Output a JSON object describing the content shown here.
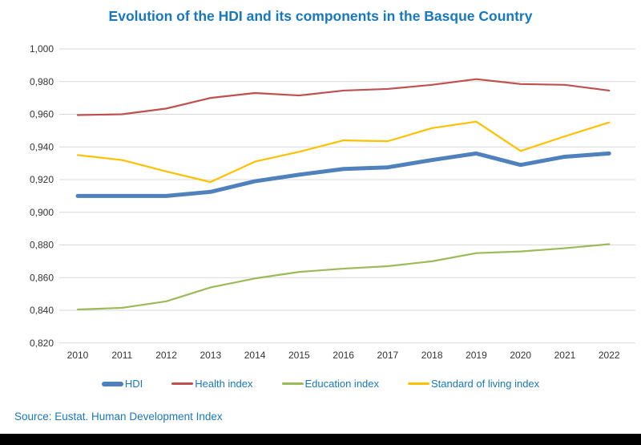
{
  "title": "Evolution of the HDI and its components in the Basque Country",
  "source": "Source: Eustat. Human Development Index",
  "colors": {
    "title_text": "#1878BE",
    "legend_text": "#1878BE",
    "source_text": "#1878BE",
    "gridline": "#D9D9D9",
    "tick_text": "#333333",
    "footer_bar": "#000000",
    "hdi_line": "#4F81BD",
    "health_line": "#C0504D",
    "education_line": "#9BBB59",
    "standard_of_living_line": "#FFC000"
  },
  "chart_data": {
    "type": "line",
    "title": "Evolution of the HDI and its components in the Basque Country",
    "xlabel": "",
    "ylabel": "",
    "categories": [
      "2010",
      "2011",
      "2012",
      "2013",
      "2014",
      "2015",
      "2016",
      "2017",
      "2018",
      "2019",
      "2020",
      "2021",
      "2022"
    ],
    "ylim": [
      0.82,
      1.0
    ],
    "ytick_step": 0.02,
    "yticks": {
      "values": [
        1.0,
        0.98,
        0.96,
        0.94,
        0.92,
        0.9,
        0.88,
        0.86,
        0.84,
        0.82
      ],
      "labels": [
        "1,000",
        "0,980",
        "0,960",
        "0,940",
        "0,920",
        "0,900",
        "0,880",
        "0,860",
        "0,840",
        "0,820"
      ]
    },
    "grid": true,
    "legend_position": "bottom",
    "series": [
      {
        "name": "HDI",
        "color": "#4F81BD",
        "stroke_width": 5,
        "values": [
          0.91,
          0.91,
          0.91,
          0.9125,
          0.919,
          0.923,
          0.9265,
          0.9275,
          0.932,
          0.936,
          0.929,
          0.934,
          0.936
        ]
      },
      {
        "name": "Health index",
        "color": "#C0504D",
        "stroke_width": 2.2,
        "values": [
          0.9595,
          0.96,
          0.9635,
          0.97,
          0.973,
          0.9715,
          0.9745,
          0.9755,
          0.978,
          0.9815,
          0.9785,
          0.978,
          0.9745
        ]
      },
      {
        "name": "Education index",
        "color": "#9BBB59",
        "stroke_width": 2.2,
        "values": [
          0.8405,
          0.8415,
          0.8455,
          0.854,
          0.8595,
          0.8635,
          0.8655,
          0.867,
          0.87,
          0.875,
          0.876,
          0.878,
          0.8805
        ]
      },
      {
        "name": "Standard of living index",
        "color": "#FFC000",
        "stroke_width": 2.2,
        "values": [
          0.935,
          0.932,
          0.925,
          0.9185,
          0.931,
          0.937,
          0.944,
          0.9435,
          0.9515,
          0.9555,
          0.9375,
          0.9465,
          0.955
        ]
      }
    ]
  }
}
